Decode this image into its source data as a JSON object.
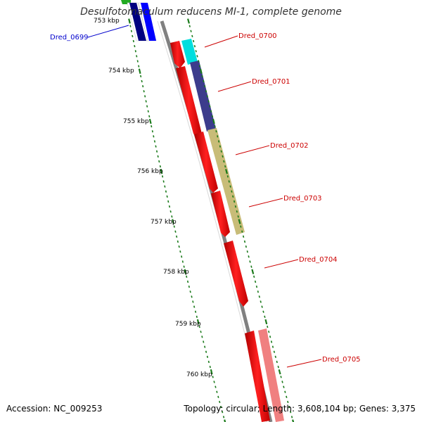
{
  "title": "Desulfotomaculum reducens MI-1, complete genome",
  "accession": "Accession: NC_009253",
  "stats": "Topology: circular; Length: 3,608,104 bp; Genes: 3,375",
  "tick_labels": [
    {
      "label": "753 kbp",
      "pos": 753
    },
    {
      "label": "754 kbp",
      "pos": 754
    },
    {
      "label": "755 kbp",
      "pos": 755
    },
    {
      "label": "756 kbp",
      "pos": 756
    },
    {
      "label": "757 kbp",
      "pos": 757
    },
    {
      "label": "758 kbp",
      "pos": 758
    },
    {
      "label": "759 kbp",
      "pos": 759
    },
    {
      "label": "760 kbp",
      "pos": 760
    }
  ],
  "genes": [
    {
      "name": "Dred_0699",
      "color": "#0000cc"
    },
    {
      "name": "Dred_0700",
      "color": "#cc0000"
    },
    {
      "name": "Dred_0701",
      "color": "#cc0000"
    },
    {
      "name": "Dred_0702",
      "color": "#cc0000"
    },
    {
      "name": "Dred_0703",
      "color": "#cc0000"
    },
    {
      "name": "Dred_0704",
      "color": "#cc0000"
    },
    {
      "name": "Dred_0705",
      "color": "#cc0000"
    }
  ],
  "colors": {
    "backbone": "#808080",
    "tick": "#1a7a1a",
    "cds": "#ff0000",
    "blue": "#0000ff",
    "cyan": "#00e5e5",
    "navy": "#3c3c8c",
    "khaki": "#c8bc78",
    "pink": "#f08080"
  }
}
